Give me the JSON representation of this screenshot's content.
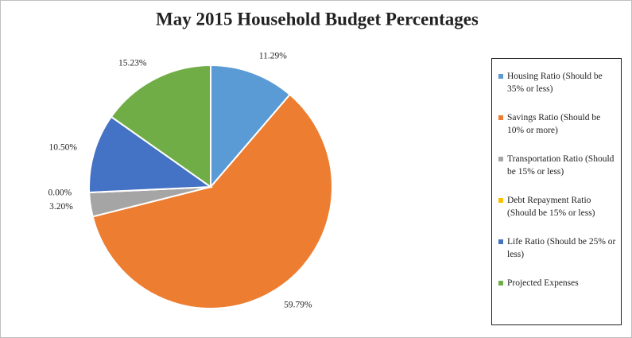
{
  "chart_data": {
    "type": "pie",
    "title": "May 2015 Household Budget Percentages",
    "categories": [
      "Housing Ratio (Should be 35% or less)",
      "Savings Ratio (Should be 10% or more)",
      "Transportation Ratio (Should be 15% or less)",
      "Debt Repayment Ratio (Should be 15% or less)",
      "Life Ratio (Should be 25% or less)",
      "Projected Expenses"
    ],
    "values": [
      11.29,
      59.79,
      3.2,
      0,
      10.5,
      15.23
    ],
    "value_labels": [
      "11.29%",
      "59.79%",
      "3.20%",
      "0.00%",
      "10.50%",
      "15.23%"
    ],
    "colors": [
      "#5b9bd5",
      "#ed7d31",
      "#a5a5a5",
      "#ffc000",
      "#4472c4",
      "#70ad47"
    ],
    "legend": "right"
  }
}
